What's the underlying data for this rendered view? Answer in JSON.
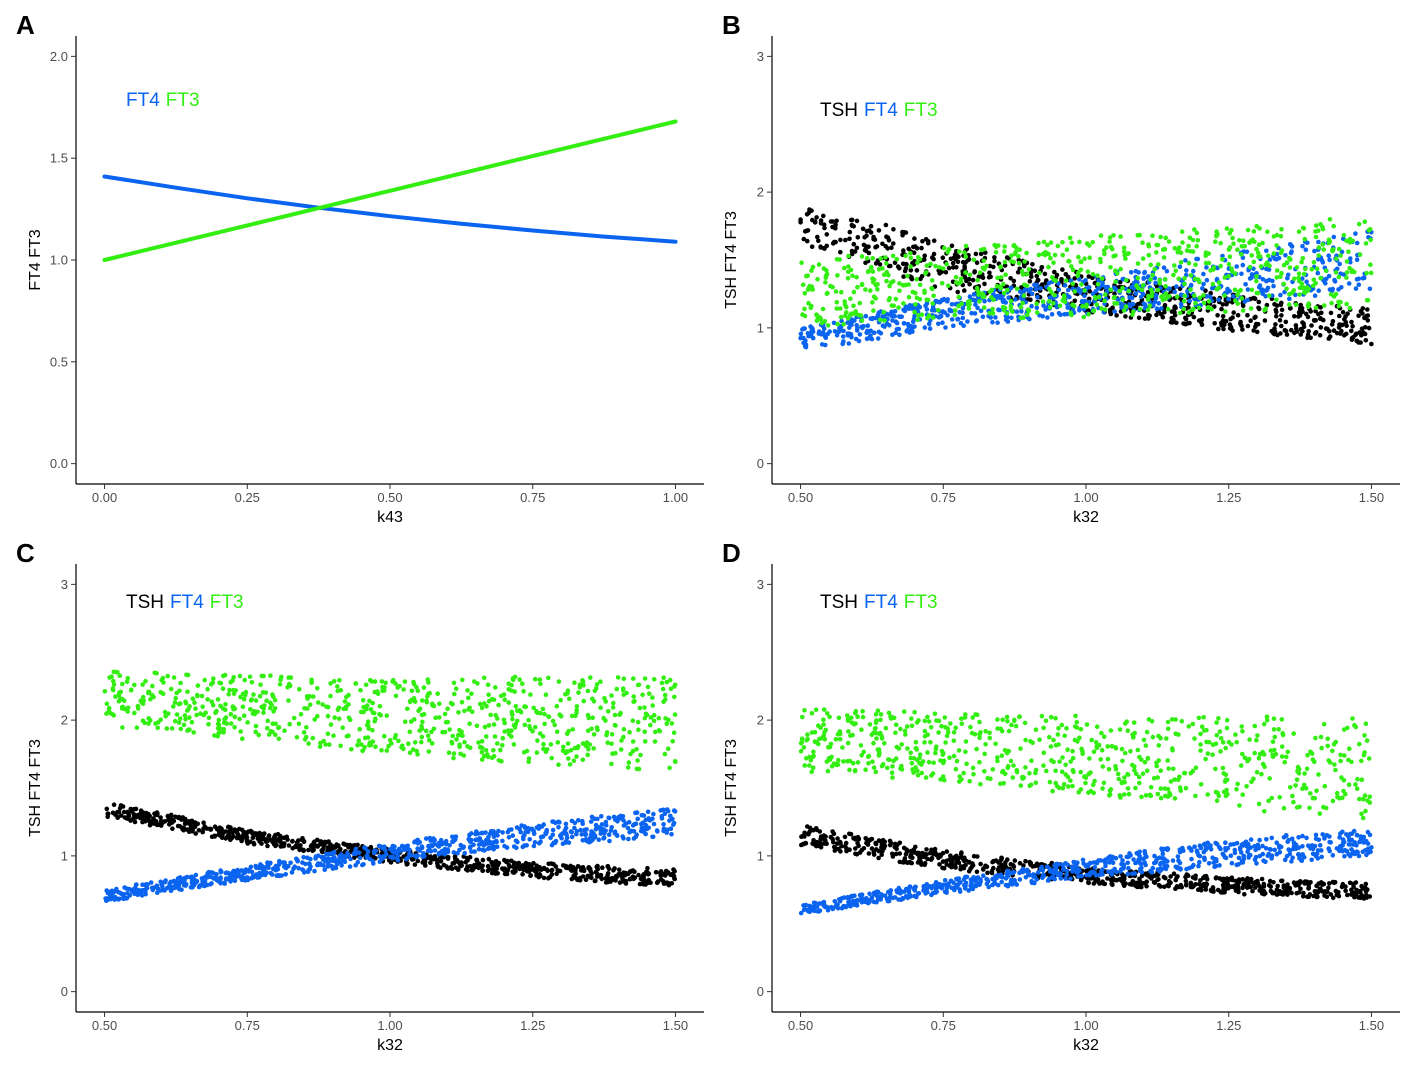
{
  "colors": {
    "tsh": "#000000",
    "ft4": "#0a64f0",
    "ft3": "#33ee11"
  },
  "chart_data": [
    {
      "panel": "A",
      "type": "line",
      "xlabel": "k43",
      "ylabel": "FT4 FT3",
      "xlim": [
        -0.05,
        1.05
      ],
      "ylim": [
        -0.1,
        2.1
      ],
      "xticks": [
        0.0,
        0.25,
        0.5,
        0.75,
        1.0
      ],
      "xtick_labels": [
        "0.00",
        "0.25",
        "0.50",
        "0.75",
        "1.00"
      ],
      "yticks": [
        0.0,
        0.5,
        1.0,
        1.5,
        2.0
      ],
      "ytick_labels": [
        "0.0",
        "0.5",
        "1.0",
        "1.5",
        "2.0"
      ],
      "legend": [
        "FT4",
        "FT3"
      ],
      "legend_colors": [
        "ft4",
        "ft3"
      ],
      "series": [
        {
          "name": "FT4",
          "color": "ft4",
          "x": [
            0,
            0.125,
            0.25,
            0.375,
            0.5,
            0.625,
            0.75,
            0.875,
            1.0
          ],
          "y": [
            1.41,
            1.355,
            1.303,
            1.257,
            1.215,
            1.178,
            1.145,
            1.115,
            1.09
          ]
        },
        {
          "name": "FT3",
          "color": "ft3",
          "x": [
            0,
            0.25,
            0.5,
            0.75,
            1.0
          ],
          "y": [
            1.0,
            1.17,
            1.34,
            1.51,
            1.68
          ]
        }
      ]
    },
    {
      "panel": "B",
      "type": "scatter",
      "xlabel": "k32",
      "ylabel": "TSH FT4 FT3",
      "xlim": [
        0.45,
        1.55
      ],
      "ylim": [
        -0.15,
        3.15
      ],
      "xticks": [
        0.5,
        0.75,
        1.0,
        1.25,
        1.5
      ],
      "xtick_labels": [
        "0.50",
        "0.75",
        "1.00",
        "1.25",
        "1.50"
      ],
      "yticks": [
        0,
        1,
        2,
        3
      ],
      "ytick_labels": [
        "0",
        "1",
        "2",
        "3"
      ],
      "legend": [
        "TSH",
        "FT4",
        "FT3"
      ],
      "legend_colors": [
        "tsh",
        "ft4",
        "ft3"
      ],
      "series": [
        {
          "name": "TSH",
          "color": "tsh",
          "trend": {
            "x": [
              0.5,
              0.75,
              1.0,
              1.25,
              1.5
            ],
            "low": [
              1.62,
              1.28,
              1.12,
              0.98,
              0.88
            ],
            "high": [
              1.97,
              1.62,
              1.4,
              1.25,
              1.14
            ]
          }
        },
        {
          "name": "FT4",
          "color": "ft4",
          "trend": {
            "x": [
              0.5,
              0.75,
              1.0,
              1.25,
              1.5
            ],
            "low": [
              0.82,
              1.0,
              1.1,
              1.18,
              1.25
            ],
            "high": [
              1.0,
              1.22,
              1.38,
              1.55,
              1.72
            ]
          }
        },
        {
          "name": "FT3",
          "color": "ft3",
          "trend": {
            "x": [
              0.5,
              0.75,
              1.0,
              1.25,
              1.5
            ],
            "low": [
              1.0,
              1.05,
              1.08,
              1.12,
              1.15
            ],
            "high": [
              1.5,
              1.6,
              1.68,
              1.75,
              1.82
            ]
          }
        }
      ]
    },
    {
      "panel": "C",
      "type": "scatter",
      "xlabel": "k32",
      "ylabel": "TSH FT4 FT3",
      "xlim": [
        0.45,
        1.55
      ],
      "ylim": [
        -0.15,
        3.15
      ],
      "xticks": [
        0.5,
        0.75,
        1.0,
        1.25,
        1.5
      ],
      "xtick_labels": [
        "0.50",
        "0.75",
        "1.00",
        "1.25",
        "1.50"
      ],
      "yticks": [
        0,
        1,
        2,
        3
      ],
      "ytick_labels": [
        "0",
        "1",
        "2",
        "3"
      ],
      "legend": [
        "TSH",
        "FT4",
        "FT3"
      ],
      "legend_colors": [
        "tsh",
        "ft4",
        "ft3"
      ],
      "series": [
        {
          "name": "TSH",
          "color": "tsh",
          "trend": {
            "x": [
              0.5,
              0.75,
              1.0,
              1.25,
              1.5
            ],
            "low": [
              1.29,
              1.09,
              0.95,
              0.84,
              0.77
            ],
            "high": [
              1.4,
              1.19,
              1.05,
              0.95,
              0.9
            ]
          }
        },
        {
          "name": "FT4",
          "color": "ft4",
          "trend": {
            "x": [
              0.5,
              0.75,
              1.0,
              1.25,
              1.5
            ],
            "low": [
              0.66,
              0.82,
              0.96,
              1.07,
              1.14
            ],
            "high": [
              0.75,
              0.93,
              1.09,
              1.24,
              1.36
            ]
          }
        },
        {
          "name": "FT3",
          "color": "ft3",
          "trend": {
            "x": [
              0.5,
              0.75,
              1.0,
              1.25,
              1.5
            ],
            "low": [
              1.95,
              1.85,
              1.75,
              1.68,
              1.62
            ],
            "high": [
              2.36,
              2.33,
              2.32,
              2.32,
              2.32
            ]
          }
        }
      ]
    },
    {
      "panel": "D",
      "type": "scatter",
      "xlabel": "k32",
      "ylabel": "TSH FT4 FT3",
      "xlim": [
        0.45,
        1.55
      ],
      "ylim": [
        -0.15,
        3.15
      ],
      "xticks": [
        0.5,
        0.75,
        1.0,
        1.25,
        1.5
      ],
      "xtick_labels": [
        "0.50",
        "0.75",
        "1.00",
        "1.25",
        "1.50"
      ],
      "yticks": [
        0,
        1,
        2,
        3
      ],
      "ytick_labels": [
        "0",
        "1",
        "2",
        "3"
      ],
      "legend": [
        "TSH",
        "FT4",
        "FT3"
      ],
      "legend_colors": [
        "tsh",
        "ft4",
        "ft3"
      ],
      "series": [
        {
          "name": "TSH",
          "color": "tsh",
          "trend": {
            "x": [
              0.5,
              0.75,
              1.0,
              1.25,
              1.5
            ],
            "low": [
              1.08,
              0.9,
              0.8,
              0.72,
              0.68
            ],
            "high": [
              1.23,
              1.04,
              0.92,
              0.84,
              0.8
            ]
          }
        },
        {
          "name": "FT4",
          "color": "ft4",
          "trend": {
            "x": [
              0.5,
              0.75,
              1.0,
              1.25,
              1.5
            ],
            "low": [
              0.57,
              0.72,
              0.84,
              0.92,
              1.0
            ],
            "high": [
              0.64,
              0.82,
              0.98,
              1.12,
              1.2
            ]
          }
        },
        {
          "name": "FT3",
          "color": "ft3",
          "trend": {
            "x": [
              0.5,
              0.75,
              1.0,
              1.25,
              1.5
            ],
            "low": [
              1.62,
              1.55,
              1.45,
              1.35,
              1.25
            ],
            "high": [
              2.1,
              2.05,
              2.03,
              2.03,
              2.02
            ]
          }
        }
      ]
    }
  ]
}
